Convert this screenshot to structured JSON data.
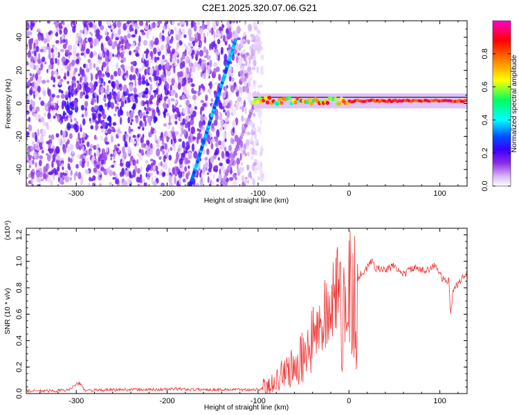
{
  "figure": {
    "title": "C2E1.2025.320.07.06.G21"
  },
  "chart_data": [
    {
      "type": "heatmap",
      "xlabel": "Height of straight line (km)",
      "ylabel": "Frequency (Hz)",
      "xlim": [
        -355,
        130
      ],
      "ylim": [
        -50,
        50
      ],
      "xticks": [
        -300,
        -200,
        -100,
        0,
        100
      ],
      "yticks": [
        -40,
        -20,
        0,
        20,
        40
      ],
      "colorbar": {
        "label": "Normalized spectral amplitude",
        "range": [
          0,
          1
        ],
        "ticks": [
          0.0,
          0.2,
          0.4,
          0.6,
          0.8
        ],
        "colormap": [
          "#ffffff",
          "#d8b4f8",
          "#8a2be2",
          "#3a00ff",
          "#0050ff",
          "#00ffff",
          "#00ff60",
          "#ffff00",
          "#ff8000",
          "#ff0000",
          "#ff00c8"
        ]
      },
      "features": [
        {
          "kind": "noise",
          "x_range": [
            -355,
            -95
          ],
          "freq_range": [
            -50,
            50
          ],
          "amplitude": 0.2
        },
        {
          "kind": "diagonal-streak",
          "from": [
            -175,
            -50
          ],
          "to": [
            -125,
            38
          ],
          "amplitude": 0.45
        },
        {
          "kind": "faint-streak",
          "from": [
            -140,
            -50
          ],
          "to": [
            -100,
            5
          ],
          "amplitude": 0.15
        },
        {
          "kind": "signal-band",
          "x_range": [
            -105,
            130
          ],
          "frequency": 1.5,
          "amplitude": 0.95
        }
      ]
    },
    {
      "type": "line",
      "xlabel": "Height of straight line (km)",
      "ylabel": "SNR (10 * v/v)",
      "y_multiplier": "(x10⁴)",
      "xlim": [
        -355,
        130
      ],
      "ylim": [
        0,
        1.25
      ],
      "xticks": [
        -300,
        -200,
        -100,
        0,
        100
      ],
      "yticks": [
        0.0,
        0.2,
        0.4,
        0.6,
        0.8,
        1.0,
        1.2
      ],
      "series": [
        {
          "color": "#ee3333",
          "x": [
            -355,
            -330,
            -310,
            -297,
            -290,
            -270,
            -250,
            -230,
            -210,
            -190,
            -170,
            -150,
            -130,
            -110,
            -100,
            -90,
            -80,
            -70,
            -60,
            -50,
            -40,
            -30,
            -20,
            -15,
            -10,
            -5,
            0,
            5,
            10,
            20,
            25,
            30,
            40,
            50,
            55,
            60,
            70,
            80,
            90,
            95,
            100,
            105,
            110,
            112,
            115,
            120,
            125,
            130
          ],
          "y": [
            0.02,
            0.02,
            0.025,
            0.08,
            0.025,
            0.025,
            0.03,
            0.03,
            0.03,
            0.035,
            0.03,
            0.03,
            0.03,
            0.03,
            0.03,
            0.06,
            0.1,
            0.17,
            0.25,
            0.35,
            0.45,
            0.55,
            0.7,
            0.85,
            0.8,
            0.75,
            0.9,
            0.85,
            0.88,
            0.95,
            1.0,
            0.95,
            0.93,
            0.97,
            0.93,
            0.9,
            0.95,
            0.93,
            0.95,
            0.97,
            0.9,
            0.85,
            0.85,
            0.6,
            0.8,
            0.83,
            0.88,
            0.9
          ]
        }
      ]
    }
  ]
}
